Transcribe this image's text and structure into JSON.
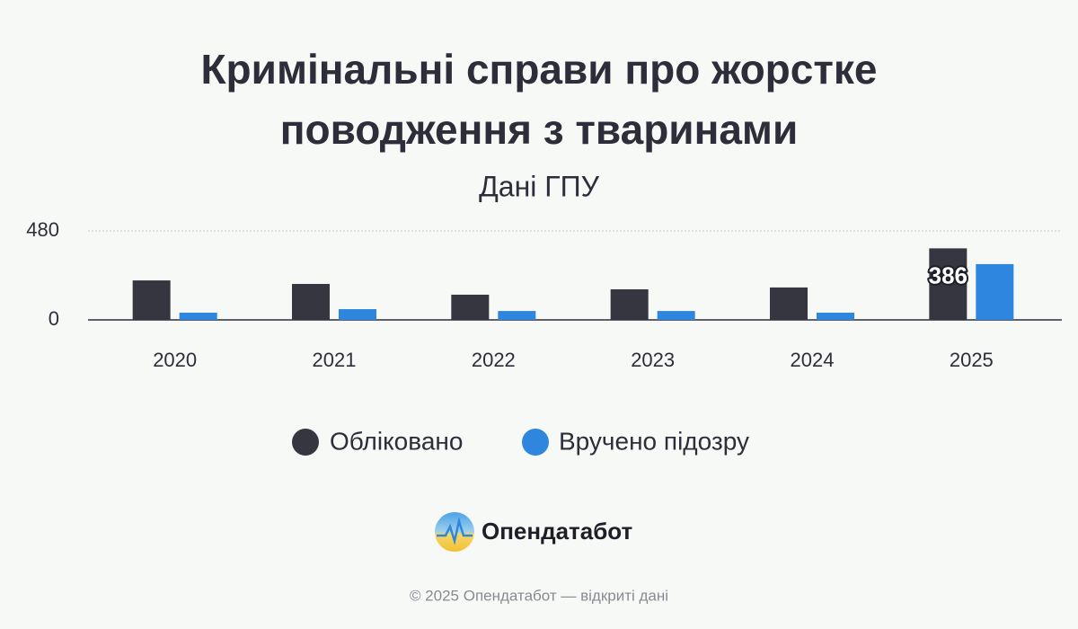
{
  "chart_data": {
    "type": "bar",
    "title": "Кримінальні справи про жорстке поводження з тваринами",
    "subtitle": "Дані ГПУ",
    "categories": [
      "2020",
      "2021",
      "2022",
      "2023",
      "2024",
      "2025"
    ],
    "series": [
      {
        "name": "Обліковано",
        "color": "#363640",
        "values": [
          213,
          194,
          136,
          165,
          175,
          386
        ]
      },
      {
        "name": "Вручено підозру",
        "color": "#2e86de",
        "values": [
          39,
          58,
          48,
          48,
          39,
          301
        ]
      }
    ],
    "ylim": [
      0,
      480
    ],
    "yticks": [
      0,
      480
    ],
    "grid": true
  },
  "brand": "Опендатабот",
  "copyright": "© 2025 Опендатабот — відкриті дані"
}
